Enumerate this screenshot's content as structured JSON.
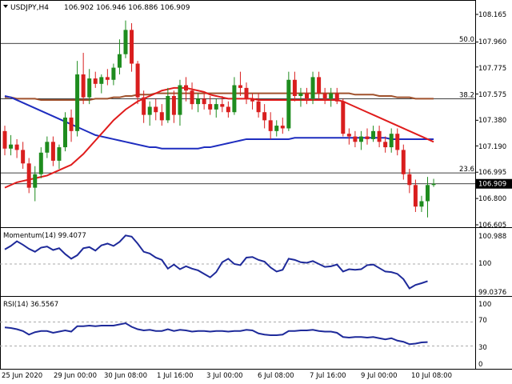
{
  "header": {
    "symbol": "USDJPY,H4",
    "ohlc": "106.902 106.946 106.886 106.909"
  },
  "colors": {
    "bull": "#1e8c1e",
    "bear": "#d91e1e",
    "sma_fast": "#e01c1c",
    "sma_mid": "#1e2dbf",
    "sma_slow": "#a0522d",
    "indicator": "#1e2a9a",
    "grid": "#aaaaaa",
    "level": "#000000"
  },
  "price_axis": {
    "labels": [
      "108.165",
      "107.960",
      "107.775",
      "107.575",
      "107.380",
      "107.190",
      "106.995",
      "106.800",
      "106.605"
    ],
    "current": "106.909"
  },
  "fib_levels": [
    {
      "label": "50.0",
      "value": 107.95
    },
    {
      "label": "38.2",
      "value": 107.54
    },
    {
      "label": "23.6",
      "value": 106.99
    }
  ],
  "momentum": {
    "title": "Momentum(14) 99.4077",
    "labels": [
      "100.988",
      "100",
      "99.0376"
    ]
  },
  "rsi": {
    "title": "RSI(14) 36.5567",
    "labels": [
      "100",
      "70",
      "30",
      "0"
    ]
  },
  "time_axis": [
    "25 Jun 2020",
    "29 Jun 00:00",
    "30 Jun 08:00",
    "1 Jul 16:00",
    "3 Jul 00:00",
    "6 Jul 08:00",
    "7 Jul 16:00",
    "9 Jul 00:00",
    "10 Jul 08:00"
  ],
  "chart_data": {
    "type": "candlestick",
    "candles": [
      {
        "o": 107.3,
        "h": 107.34,
        "l": 107.12,
        "c": 107.17
      },
      {
        "o": 107.17,
        "h": 107.27,
        "l": 107.12,
        "c": 107.2
      },
      {
        "o": 107.2,
        "h": 107.24,
        "l": 107.1,
        "c": 107.16
      },
      {
        "o": 107.16,
        "h": 107.22,
        "l": 107.02,
        "c": 107.06
      },
      {
        "o": 107.06,
        "h": 107.1,
        "l": 106.84,
        "c": 106.88
      },
      {
        "o": 106.88,
        "h": 107.04,
        "l": 106.78,
        "c": 106.98
      },
      {
        "o": 106.98,
        "h": 107.18,
        "l": 106.95,
        "c": 107.14
      },
      {
        "o": 107.14,
        "h": 107.26,
        "l": 107.1,
        "c": 107.22
      },
      {
        "o": 107.22,
        "h": 107.26,
        "l": 107.04,
        "c": 107.08
      },
      {
        "o": 107.08,
        "h": 107.2,
        "l": 107.02,
        "c": 107.18
      },
      {
        "o": 107.18,
        "h": 107.44,
        "l": 107.15,
        "c": 107.4
      },
      {
        "o": 107.4,
        "h": 107.46,
        "l": 107.22,
        "c": 107.3
      },
      {
        "o": 107.3,
        "h": 107.82,
        "l": 107.26,
        "c": 107.72
      },
      {
        "o": 107.72,
        "h": 107.88,
        "l": 107.5,
        "c": 107.55
      },
      {
        "o": 107.55,
        "h": 107.76,
        "l": 107.5,
        "c": 107.69
      },
      {
        "o": 107.69,
        "h": 107.74,
        "l": 107.62,
        "c": 107.65
      },
      {
        "o": 107.65,
        "h": 107.72,
        "l": 107.58,
        "c": 107.7
      },
      {
        "o": 107.7,
        "h": 107.76,
        "l": 107.64,
        "c": 107.68
      },
      {
        "o": 107.68,
        "h": 107.8,
        "l": 107.64,
        "c": 107.77
      },
      {
        "o": 107.77,
        "h": 107.98,
        "l": 107.72,
        "c": 107.87
      },
      {
        "o": 107.87,
        "h": 108.12,
        "l": 107.84,
        "c": 108.05
      },
      {
        "o": 108.05,
        "h": 108.1,
        "l": 107.74,
        "c": 107.8
      },
      {
        "o": 107.8,
        "h": 107.82,
        "l": 107.5,
        "c": 107.55
      },
      {
        "o": 107.55,
        "h": 107.6,
        "l": 107.36,
        "c": 107.42
      },
      {
        "o": 107.42,
        "h": 107.52,
        "l": 107.34,
        "c": 107.48
      },
      {
        "o": 107.48,
        "h": 107.54,
        "l": 107.38,
        "c": 107.44
      },
      {
        "o": 107.44,
        "h": 107.5,
        "l": 107.34,
        "c": 107.38
      },
      {
        "o": 107.38,
        "h": 107.62,
        "l": 107.36,
        "c": 107.56
      },
      {
        "o": 107.56,
        "h": 107.6,
        "l": 107.36,
        "c": 107.42
      },
      {
        "o": 107.42,
        "h": 107.68,
        "l": 107.34,
        "c": 107.64
      },
      {
        "o": 107.64,
        "h": 107.7,
        "l": 107.52,
        "c": 107.6
      },
      {
        "o": 107.6,
        "h": 107.66,
        "l": 107.46,
        "c": 107.5
      },
      {
        "o": 107.5,
        "h": 107.58,
        "l": 107.44,
        "c": 107.54
      },
      {
        "o": 107.54,
        "h": 107.58,
        "l": 107.46,
        "c": 107.5
      },
      {
        "o": 107.5,
        "h": 107.56,
        "l": 107.42,
        "c": 107.46
      },
      {
        "o": 107.46,
        "h": 107.54,
        "l": 107.4,
        "c": 107.5
      },
      {
        "o": 107.5,
        "h": 107.56,
        "l": 107.44,
        "c": 107.48
      },
      {
        "o": 107.48,
        "h": 107.52,
        "l": 107.4,
        "c": 107.44
      },
      {
        "o": 107.44,
        "h": 107.7,
        "l": 107.42,
        "c": 107.64
      },
      {
        "o": 107.64,
        "h": 107.74,
        "l": 107.56,
        "c": 107.62
      },
      {
        "o": 107.62,
        "h": 107.66,
        "l": 107.5,
        "c": 107.54
      },
      {
        "o": 107.54,
        "h": 107.58,
        "l": 107.46,
        "c": 107.52
      },
      {
        "o": 107.52,
        "h": 107.58,
        "l": 107.4,
        "c": 107.44
      },
      {
        "o": 107.44,
        "h": 107.5,
        "l": 107.32,
        "c": 107.38
      },
      {
        "o": 107.38,
        "h": 107.44,
        "l": 107.24,
        "c": 107.3
      },
      {
        "o": 107.3,
        "h": 107.38,
        "l": 107.26,
        "c": 107.34
      },
      {
        "o": 107.34,
        "h": 107.4,
        "l": 107.28,
        "c": 107.32
      },
      {
        "o": 107.32,
        "h": 107.74,
        "l": 107.3,
        "c": 107.68
      },
      {
        "o": 107.68,
        "h": 107.74,
        "l": 107.52,
        "c": 107.56
      },
      {
        "o": 107.56,
        "h": 107.62,
        "l": 107.48,
        "c": 107.58
      },
      {
        "o": 107.58,
        "h": 107.62,
        "l": 107.5,
        "c": 107.54
      },
      {
        "o": 107.54,
        "h": 107.74,
        "l": 107.5,
        "c": 107.7
      },
      {
        "o": 107.7,
        "h": 107.74,
        "l": 107.54,
        "c": 107.58
      },
      {
        "o": 107.58,
        "h": 107.62,
        "l": 107.5,
        "c": 107.54
      },
      {
        "o": 107.54,
        "h": 107.62,
        "l": 107.48,
        "c": 107.58
      },
      {
        "o": 107.58,
        "h": 107.62,
        "l": 107.5,
        "c": 107.52
      },
      {
        "o": 107.52,
        "h": 107.54,
        "l": 107.26,
        "c": 107.28
      },
      {
        "o": 107.28,
        "h": 107.32,
        "l": 107.2,
        "c": 107.26
      },
      {
        "o": 107.26,
        "h": 107.3,
        "l": 107.18,
        "c": 107.22
      },
      {
        "o": 107.22,
        "h": 107.3,
        "l": 107.16,
        "c": 107.26
      },
      {
        "o": 107.26,
        "h": 107.32,
        "l": 107.2,
        "c": 107.24
      },
      {
        "o": 107.24,
        "h": 107.34,
        "l": 107.22,
        "c": 107.3
      },
      {
        "o": 107.3,
        "h": 107.34,
        "l": 107.18,
        "c": 107.22
      },
      {
        "o": 107.22,
        "h": 107.26,
        "l": 107.14,
        "c": 107.18
      },
      {
        "o": 107.18,
        "h": 107.32,
        "l": 107.14,
        "c": 107.28
      },
      {
        "o": 107.28,
        "h": 107.32,
        "l": 107.12,
        "c": 107.16
      },
      {
        "o": 107.16,
        "h": 107.2,
        "l": 106.94,
        "c": 106.98
      },
      {
        "o": 106.98,
        "h": 107.02,
        "l": 106.84,
        "c": 106.9
      },
      {
        "o": 106.9,
        "h": 106.94,
        "l": 106.7,
        "c": 106.74
      },
      {
        "o": 106.74,
        "h": 106.82,
        "l": 106.7,
        "c": 106.78
      },
      {
        "o": 106.78,
        "h": 106.96,
        "l": 106.66,
        "c": 106.9
      },
      {
        "o": 106.9,
        "h": 106.946,
        "l": 106.886,
        "c": 106.909
      }
    ],
    "sma_fast": [
      106.88,
      106.9,
      106.92,
      106.93,
      106.94,
      106.95,
      106.96,
      106.97,
      106.99,
      107.01,
      107.03,
      107.05,
      107.09,
      107.13,
      107.18,
      107.23,
      107.28,
      107.33,
      107.38,
      107.42,
      107.46,
      107.49,
      107.52,
      107.54,
      107.56,
      107.58,
      107.6,
      107.61,
      107.62,
      107.62,
      107.62,
      107.61,
      107.6,
      107.59,
      107.57,
      107.56,
      107.55,
      107.54,
      107.54,
      107.54,
      107.54,
      107.54,
      107.53,
      107.53,
      107.53,
      107.53,
      107.53,
      107.53,
      107.53,
      107.53,
      107.53,
      107.53,
      107.53,
      107.53,
      107.53,
      107.53,
      107.52,
      107.5,
      107.48,
      107.46,
      107.44,
      107.42,
      107.4,
      107.38,
      107.36,
      107.34,
      107.32,
      107.3,
      107.28,
      107.26,
      107.24,
      107.22
    ],
    "sma_mid": [
      107.56,
      107.55,
      107.53,
      107.51,
      107.49,
      107.47,
      107.45,
      107.43,
      107.41,
      107.39,
      107.37,
      107.35,
      107.33,
      107.31,
      107.29,
      107.27,
      107.26,
      107.25,
      107.24,
      107.23,
      107.22,
      107.21,
      107.2,
      107.19,
      107.18,
      107.18,
      107.17,
      107.17,
      107.17,
      107.17,
      107.17,
      107.17,
      107.17,
      107.18,
      107.18,
      107.19,
      107.2,
      107.21,
      107.22,
      107.23,
      107.24,
      107.24,
      107.24,
      107.24,
      107.24,
      107.24,
      107.24,
      107.24,
      107.25,
      107.25,
      107.25,
      107.25,
      107.25,
      107.25,
      107.25,
      107.25,
      107.25,
      107.25,
      107.25,
      107.25,
      107.25,
      107.25,
      107.25,
      107.25,
      107.24,
      107.24,
      107.24,
      107.24,
      107.24,
      107.24,
      107.24,
      107.24
    ],
    "sma_slow": [
      107.55,
      107.55,
      107.54,
      107.54,
      107.54,
      107.54,
      107.53,
      107.53,
      107.53,
      107.53,
      107.53,
      107.53,
      107.53,
      107.53,
      107.53,
      107.54,
      107.54,
      107.54,
      107.55,
      107.55,
      107.56,
      107.56,
      107.57,
      107.57,
      107.57,
      107.58,
      107.58,
      107.58,
      107.58,
      107.58,
      107.58,
      107.58,
      107.58,
      107.58,
      107.58,
      107.58,
      107.58,
      107.58,
      107.58,
      107.58,
      107.58,
      107.58,
      107.58,
      107.58,
      107.58,
      107.58,
      107.58,
      107.58,
      107.58,
      107.58,
      107.58,
      107.58,
      107.58,
      107.58,
      107.58,
      107.58,
      107.58,
      107.58,
      107.57,
      107.57,
      107.57,
      107.57,
      107.56,
      107.56,
      107.56,
      107.55,
      107.55,
      107.55,
      107.54,
      107.54,
      107.54,
      107.54
    ],
    "momentum": [
      100.5,
      100.62,
      100.78,
      100.66,
      100.52,
      100.42,
      100.56,
      100.6,
      100.48,
      100.54,
      100.34,
      100.18,
      100.3,
      100.54,
      100.58,
      100.46,
      100.64,
      100.7,
      100.62,
      100.76,
      100.98,
      100.94,
      100.7,
      100.42,
      100.36,
      100.22,
      100.14,
      99.84,
      99.98,
      99.82,
      99.92,
      99.84,
      99.78,
      99.66,
      99.54,
      99.72,
      100.06,
      100.18,
      100.0,
      99.96,
      100.22,
      100.24,
      100.14,
      100.08,
      99.88,
      99.74,
      99.8,
      100.18,
      100.14,
      100.06,
      100.04,
      100.1,
      100.0,
      99.9,
      99.92,
      99.98,
      99.74,
      99.82,
      99.8,
      99.82,
      99.96,
      99.98,
      99.86,
      99.74,
      99.72,
      99.66,
      99.48,
      99.16,
      99.28,
      99.34,
      99.41
    ],
    "rsi": [
      61,
      60,
      58,
      55,
      49,
      53,
      55,
      55,
      52,
      54,
      56,
      54,
      63,
      63,
      64,
      63,
      64,
      64,
      64,
      66,
      68,
      62,
      58,
      56,
      57,
      55,
      55,
      58,
      55,
      57,
      56,
      54,
      55,
      55,
      54,
      55,
      55,
      54,
      55,
      55,
      57,
      56,
      51,
      49,
      48,
      48,
      49,
      55,
      55,
      56,
      56,
      57,
      55,
      54,
      54,
      52,
      45,
      44,
      45,
      45,
      44,
      45,
      43,
      41,
      43,
      39,
      37,
      33,
      34,
      36,
      36.56
    ]
  }
}
